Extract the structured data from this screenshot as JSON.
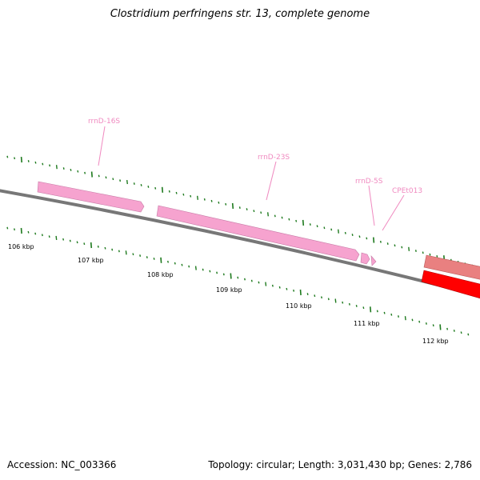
{
  "title": "Clostridium perfringens str. 13, complete genome",
  "footer": {
    "accession": "Accession: NC_003366",
    "summary": "Topology: circular; Length: 3,031,430 bp; Genes: 2,786"
  },
  "colors": {
    "backbone": "#777777",
    "tick": "#1e7a1e",
    "rrna": "#f6a3cf",
    "rrna_label": "#f08ac0",
    "cds_forward": "#e98080",
    "cds_reverse": "#ff0000"
  },
  "genome_view": {
    "tick_labels": [
      "106 kbp",
      "107 kbp",
      "108 kbp",
      "109 kbp",
      "110 kbp",
      "111 kbp",
      "112 kbp"
    ],
    "genes": [
      {
        "name": "rrnD-16S",
        "type": "rRNA",
        "strand": "+"
      },
      {
        "name": "rrnD-23S",
        "type": "rRNA",
        "strand": "+"
      },
      {
        "name": "rrnD-5S",
        "type": "rRNA",
        "strand": "+"
      },
      {
        "name": "CPEt013",
        "type": "tRNA",
        "strand": "+"
      },
      {
        "name": "",
        "type": "CDS",
        "strand": "+"
      },
      {
        "name": "",
        "type": "CDS",
        "strand": "-"
      }
    ]
  }
}
